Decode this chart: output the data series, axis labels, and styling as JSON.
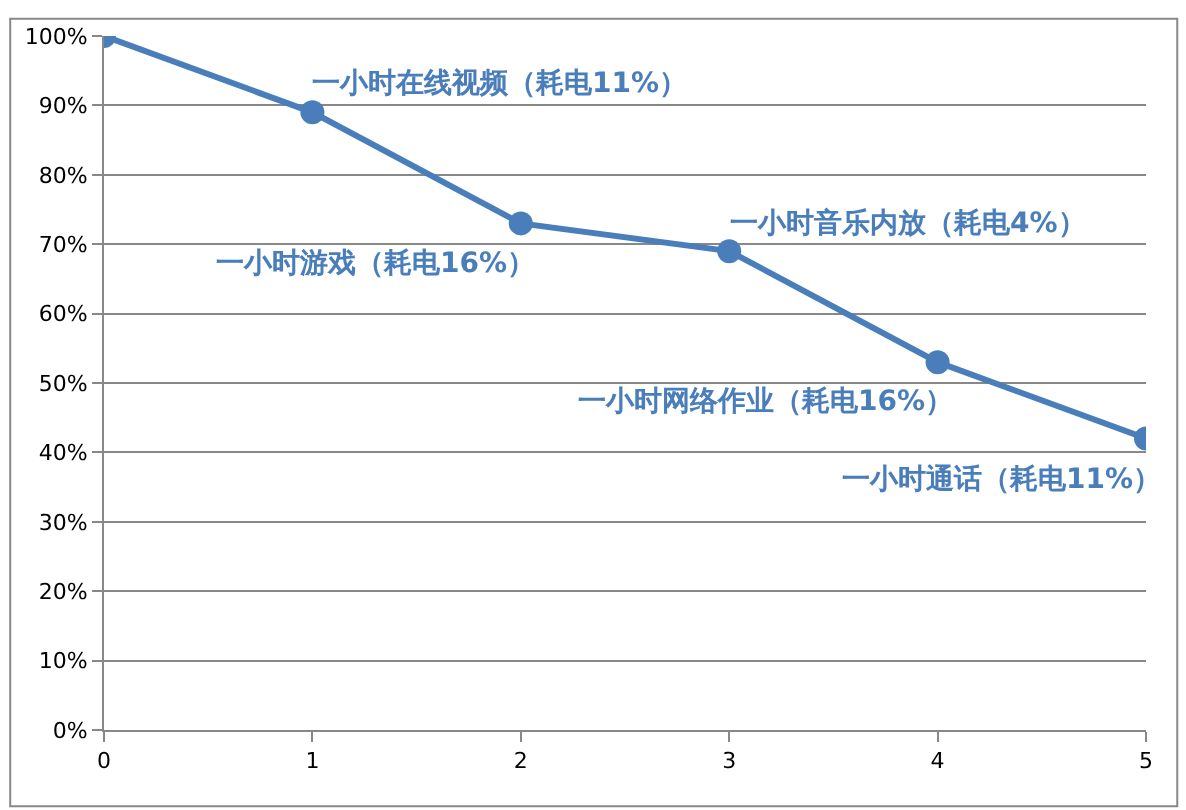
{
  "chart_data": {
    "type": "line",
    "x": [
      0,
      1,
      2,
      3,
      4,
      5
    ],
    "series": [
      {
        "color": "#4a7ebb",
        "values": [
          100,
          89,
          73,
          69,
          53,
          42
        ]
      }
    ],
    "xlim": [
      0,
      5
    ],
    "xticks": [
      0,
      1,
      2,
      3,
      4,
      5
    ],
    "ylim": [
      0,
      100
    ],
    "yticks": [
      {
        "value": 0,
        "label": "0%"
      },
      {
        "value": 10,
        "label": "10%"
      },
      {
        "value": 20,
        "label": "20%"
      },
      {
        "value": 30,
        "label": "30%"
      },
      {
        "value": 40,
        "label": "40%"
      },
      {
        "value": 50,
        "label": "50%"
      },
      {
        "value": 60,
        "label": "60%"
      },
      {
        "value": 70,
        "label": "70%"
      },
      {
        "value": 80,
        "label": "80%"
      },
      {
        "value": 90,
        "label": "90%"
      },
      {
        "value": 100,
        "label": "100%"
      }
    ],
    "grid": "y",
    "marker": "circle",
    "line_style": "solid",
    "annotations": [
      {
        "text": "一小时在线视频（耗电11%）",
        "x": 1,
        "y": 89
      },
      {
        "text": "一小时游戏（耗电16%）",
        "x": 2,
        "y": 73
      },
      {
        "text": "一小时音乐内放（耗电4%）",
        "x": 3,
        "y": 69
      },
      {
        "text": "一小时网络作业（耗电16%）",
        "x": 4,
        "y": 53
      },
      {
        "text": "一小时通话（耗电11%）",
        "x": 5,
        "y": 42
      }
    ]
  }
}
